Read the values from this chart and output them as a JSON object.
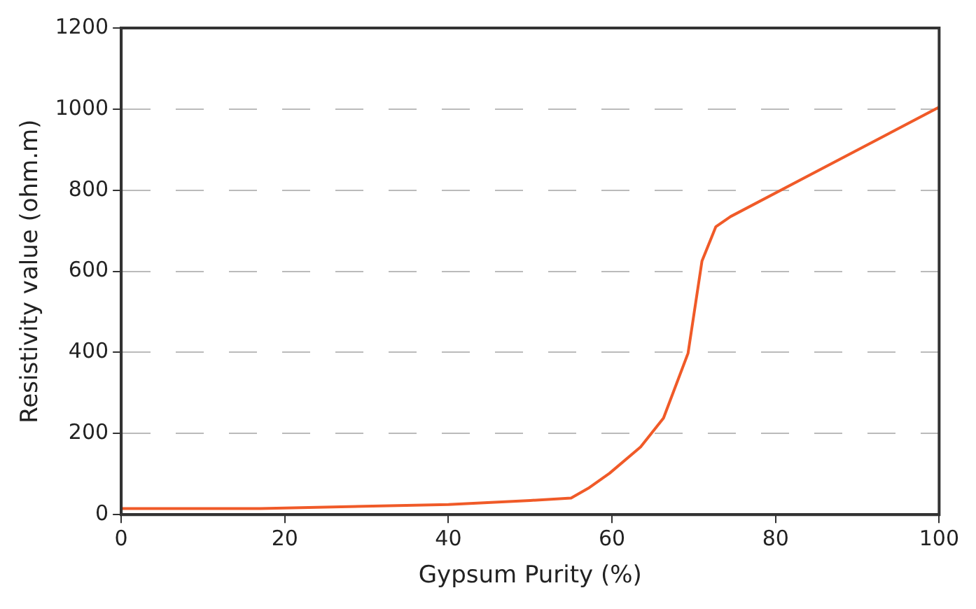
{
  "chart_data": {
    "type": "line",
    "xlabel": "Gypsum Purity (%)",
    "ylabel": "Resistivity value (ohm.m)",
    "series": [
      {
        "color": "#f05a28",
        "x": [
          0,
          17,
          40,
          50,
          55,
          57.1,
          59.7,
          63.5,
          66.3,
          69.3,
          71,
          72.7,
          74.5,
          100
        ],
        "values": [
          15,
          15,
          25,
          35,
          41,
          65,
          102,
          167,
          238,
          398,
          625,
          710,
          735,
          1005
        ]
      }
    ],
    "xlim": [
      0,
      100
    ],
    "xticks": [
      0,
      20,
      40,
      60,
      80,
      100
    ],
    "ylim": [
      0,
      1200
    ],
    "yticks": [
      0,
      200,
      400,
      600,
      800,
      1000,
      1200
    ],
    "grid": "y",
    "line_style": "solid",
    "marker": "none",
    "legend": false
  }
}
